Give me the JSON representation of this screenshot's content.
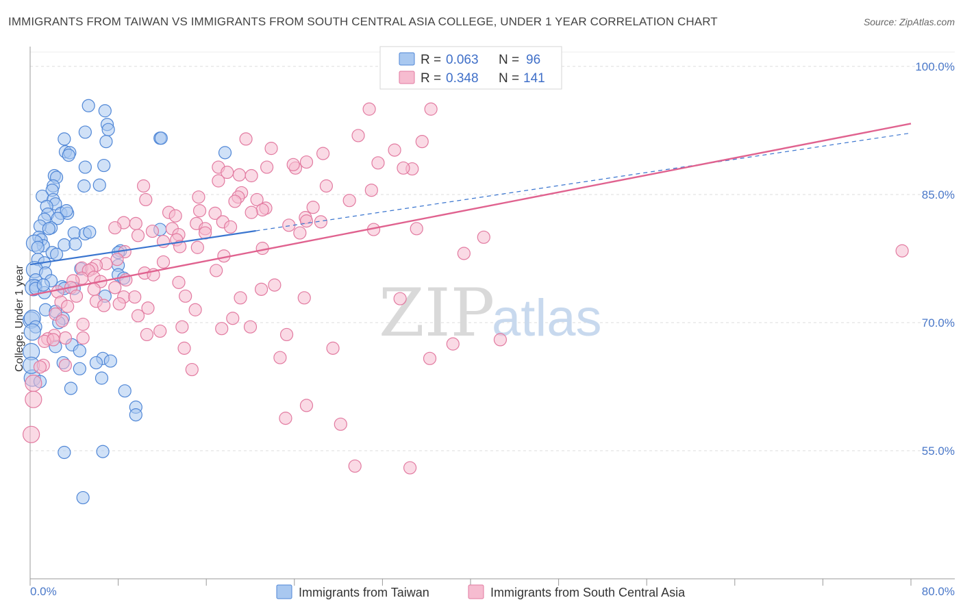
{
  "title": "IMMIGRANTS FROM TAIWAN VS IMMIGRANTS FROM SOUTH CENTRAL ASIA COLLEGE, UNDER 1 YEAR CORRELATION CHART",
  "source": "Source: ZipAtlas.com",
  "watermark": {
    "zip": "ZIP",
    "atlas": "atlas"
  },
  "colors": {
    "taiwan_fill": "#a9c8f0",
    "taiwan_stroke": "#4f86d6",
    "taiwan_line": "#3a75cf",
    "sca_fill": "#f6bcd0",
    "sca_stroke": "#e27aa0",
    "sca_line": "#e0628f",
    "grid": "#dddddd",
    "label": "#4a78c9"
  },
  "legend": {
    "r_label": "R =",
    "n_label": "N =",
    "rows": [
      {
        "series": "Immigrants from Taiwan",
        "r": "0.063",
        "n": "96"
      },
      {
        "series": "Immigrants from South Central Asia",
        "r": "0.348",
        "n": "141"
      }
    ]
  },
  "chart_data": {
    "type": "scatter",
    "title": "IMMIGRANTS FROM TAIWAN VS IMMIGRANTS FROM SOUTH CENTRAL ASIA COLLEGE, UNDER 1 YEAR CORRELATION CHART",
    "xlabel": "",
    "ylabel": "College, Under 1 year",
    "xlim": [
      0,
      80
    ],
    "ylim": [
      40,
      102
    ],
    "x_tick_labels": [
      "0.0%",
      "80.0%"
    ],
    "y_tick_values": [
      55,
      70,
      85,
      100
    ],
    "y_tick_labels": [
      "55.0%",
      "70.0%",
      "85.0%",
      "100.0%"
    ],
    "grid": true,
    "legend_position": "top-center",
    "series": [
      {
        "name": "Immigrants from Taiwan",
        "r": 0.063,
        "n": 96,
        "trend": {
          "solid_x": [
            0,
            20.5
          ],
          "dashed_x": [
            20.5,
            80
          ],
          "y_at_0": 76.8,
          "y_at_80": 92.2
        },
        "points": [
          [
            5.3,
            95.4
          ],
          [
            6.8,
            94.8
          ],
          [
            5.0,
            92.3
          ],
          [
            7.0,
            93.2
          ],
          [
            7.1,
            92.6
          ],
          [
            3.1,
            91.5
          ],
          [
            6.9,
            91.2
          ],
          [
            11.8,
            91.6
          ],
          [
            11.9,
            91.6
          ],
          [
            3.2,
            90.0
          ],
          [
            3.6,
            89.9
          ],
          [
            3.5,
            89.6
          ],
          [
            17.7,
            89.9
          ],
          [
            5.0,
            88.2
          ],
          [
            6.7,
            88.4
          ],
          [
            2.2,
            87.2
          ],
          [
            2.4,
            87.0
          ],
          [
            2.1,
            86.0
          ],
          [
            4.9,
            86.0
          ],
          [
            6.3,
            86.1
          ],
          [
            2.0,
            85.5
          ],
          [
            1.1,
            84.8
          ],
          [
            2.1,
            84.4
          ],
          [
            2.3,
            83.9
          ],
          [
            1.5,
            83.6
          ],
          [
            1.6,
            82.7
          ],
          [
            2.8,
            82.8
          ],
          [
            3.4,
            82.8
          ],
          [
            3.3,
            83.1
          ],
          [
            1.3,
            82.1
          ],
          [
            2.5,
            82.2
          ],
          [
            1.9,
            81.1
          ],
          [
            0.9,
            81.3
          ],
          [
            1.7,
            81.0
          ],
          [
            4.0,
            80.5
          ],
          [
            5.0,
            80.4
          ],
          [
            5.4,
            80.6
          ],
          [
            11.8,
            80.9
          ],
          [
            0.8,
            80.0
          ],
          [
            1.0,
            79.7
          ],
          [
            1.2,
            79.0
          ],
          [
            0.4,
            79.3
          ],
          [
            3.1,
            79.1
          ],
          [
            4.1,
            79.2
          ],
          [
            0.7,
            78.8
          ],
          [
            2.0,
            78.2
          ],
          [
            2.4,
            78.0
          ],
          [
            8.2,
            78.4
          ],
          [
            8.0,
            78.2
          ],
          [
            0.7,
            77.4
          ],
          [
            1.3,
            77.0
          ],
          [
            8.0,
            76.7
          ],
          [
            4.6,
            76.3
          ],
          [
            0.4,
            76.2
          ],
          [
            1.4,
            75.8
          ],
          [
            8.0,
            75.6
          ],
          [
            8.5,
            75.2
          ],
          [
            0.5,
            75.0
          ],
          [
            1.9,
            74.9
          ],
          [
            0.5,
            74.3
          ],
          [
            0.3,
            74.1
          ],
          [
            2.9,
            74.2
          ],
          [
            3.1,
            74.0
          ],
          [
            4.0,
            74.0
          ],
          [
            0.5,
            74.0
          ],
          [
            1.3,
            73.5
          ],
          [
            6.8,
            73.1
          ],
          [
            1.4,
            71.5
          ],
          [
            2.3,
            71.3
          ],
          [
            0.1,
            70.3
          ],
          [
            0.2,
            70.5
          ],
          [
            3.0,
            70.5
          ],
          [
            2.6,
            70.0
          ],
          [
            0.5,
            69.5
          ],
          [
            0.2,
            68.9
          ],
          [
            3.8,
            67.4
          ],
          [
            2.3,
            67.2
          ],
          [
            4.5,
            66.7
          ],
          [
            0.1,
            66.6
          ],
          [
            6.6,
            65.8
          ],
          [
            3.0,
            65.3
          ],
          [
            7.3,
            65.5
          ],
          [
            6.0,
            65.3
          ],
          [
            4.5,
            64.6
          ],
          [
            0.2,
            63.5
          ],
          [
            6.5,
            63.5
          ],
          [
            3.7,
            62.3
          ],
          [
            8.6,
            62.0
          ],
          [
            9.6,
            60.1
          ],
          [
            9.6,
            59.2
          ],
          [
            3.1,
            54.8
          ],
          [
            6.6,
            54.9
          ],
          [
            4.8,
            49.5
          ],
          [
            0.1,
            65.0
          ],
          [
            0.9,
            63.1
          ],
          [
            1.2,
            74.4
          ]
        ]
      },
      {
        "name": "Immigrants from South Central Asia",
        "r": 0.348,
        "n": 141,
        "trend": {
          "solid_x": [
            0,
            80
          ],
          "y_at_0": 73.2,
          "y_at_80": 93.3
        },
        "points": [
          [
            30.8,
            95.0
          ],
          [
            36.4,
            95.0
          ],
          [
            29.8,
            91.9
          ],
          [
            19.6,
            91.5
          ],
          [
            35.6,
            91.2
          ],
          [
            21.9,
            90.4
          ],
          [
            33.1,
            90.2
          ],
          [
            26.6,
            89.8
          ],
          [
            31.6,
            88.7
          ],
          [
            25.1,
            88.8
          ],
          [
            34.7,
            88.0
          ],
          [
            24.1,
            88.1
          ],
          [
            33.9,
            88.1
          ],
          [
            23.9,
            88.5
          ],
          [
            17.1,
            88.2
          ],
          [
            21.5,
            88.2
          ],
          [
            17.9,
            87.6
          ],
          [
            19.0,
            87.3
          ],
          [
            17.1,
            86.6
          ],
          [
            20.1,
            87.2
          ],
          [
            10.3,
            86.0
          ],
          [
            26.9,
            86.0
          ],
          [
            31.0,
            85.5
          ],
          [
            19.2,
            85.2
          ],
          [
            18.9,
            84.7
          ],
          [
            15.3,
            84.7
          ],
          [
            10.5,
            84.4
          ],
          [
            20.6,
            84.4
          ],
          [
            18.6,
            84.2
          ],
          [
            29.0,
            84.3
          ],
          [
            25.7,
            83.5
          ],
          [
            21.4,
            83.4
          ],
          [
            21.1,
            83.2
          ],
          [
            15.4,
            83.1
          ],
          [
            20.1,
            82.9
          ],
          [
            12.6,
            82.9
          ],
          [
            16.8,
            82.8
          ],
          [
            13.2,
            82.5
          ],
          [
            25.0,
            82.3
          ],
          [
            25.1,
            81.9
          ],
          [
            26.4,
            81.8
          ],
          [
            8.5,
            81.7
          ],
          [
            15.1,
            81.6
          ],
          [
            17.5,
            81.8
          ],
          [
            9.6,
            81.6
          ],
          [
            18.2,
            81.2
          ],
          [
            12.9,
            81.0
          ],
          [
            7.7,
            81.1
          ],
          [
            35.1,
            81.0
          ],
          [
            15.9,
            81.0
          ],
          [
            23.5,
            81.4
          ],
          [
            31.2,
            80.9
          ],
          [
            11.1,
            80.7
          ],
          [
            24.5,
            80.5
          ],
          [
            13.5,
            80.3
          ],
          [
            15.9,
            80.5
          ],
          [
            13.3,
            79.7
          ],
          [
            12.1,
            79.5
          ],
          [
            41.2,
            80.0
          ],
          [
            9.8,
            80.2
          ],
          [
            13.6,
            78.9
          ],
          [
            15.2,
            78.8
          ],
          [
            21.1,
            78.7
          ],
          [
            8.6,
            78.3
          ],
          [
            17.6,
            77.8
          ],
          [
            7.9,
            77.4
          ],
          [
            12.1,
            77.1
          ],
          [
            6.9,
            76.9
          ],
          [
            6.0,
            76.7
          ],
          [
            4.7,
            76.4
          ],
          [
            5.6,
            76.3
          ],
          [
            5.3,
            76.1
          ],
          [
            16.9,
            76.1
          ],
          [
            10.4,
            75.8
          ],
          [
            11.2,
            75.6
          ],
          [
            5.8,
            75.3
          ],
          [
            4.7,
            75.2
          ],
          [
            8.7,
            75.0
          ],
          [
            3.9,
            74.9
          ],
          [
            6.4,
            74.8
          ],
          [
            13.5,
            74.7
          ],
          [
            22.2,
            74.4
          ],
          [
            3.7,
            74.1
          ],
          [
            7.7,
            74.1
          ],
          [
            5.8,
            73.9
          ],
          [
            21.0,
            73.9
          ],
          [
            2.5,
            73.6
          ],
          [
            4.2,
            73.1
          ],
          [
            8.5,
            73.0
          ],
          [
            9.5,
            73.0
          ],
          [
            14.1,
            73.1
          ],
          [
            19.1,
            72.9
          ],
          [
            33.6,
            72.8
          ],
          [
            24.9,
            72.9
          ],
          [
            2.8,
            72.4
          ],
          [
            6.0,
            72.5
          ],
          [
            8.1,
            72.2
          ],
          [
            3.4,
            71.9
          ],
          [
            6.7,
            72.0
          ],
          [
            10.7,
            71.7
          ],
          [
            15.0,
            71.5
          ],
          [
            2.3,
            71.0
          ],
          [
            9.8,
            70.8
          ],
          [
            18.4,
            70.5
          ],
          [
            2.9,
            70.2
          ],
          [
            4.8,
            69.8
          ],
          [
            20.0,
            69.5
          ],
          [
            13.8,
            69.5
          ],
          [
            17.4,
            69.3
          ],
          [
            11.8,
            69.0
          ],
          [
            10.6,
            68.6
          ],
          [
            23.3,
            68.6
          ],
          [
            2.2,
            68.5
          ],
          [
            1.6,
            68.1
          ],
          [
            3.2,
            68.2
          ],
          [
            4.8,
            68.2
          ],
          [
            1.3,
            67.8
          ],
          [
            2.1,
            68.0
          ],
          [
            38.4,
            67.5
          ],
          [
            27.5,
            67.0
          ],
          [
            14.0,
            67.0
          ],
          [
            22.7,
            65.9
          ],
          [
            36.3,
            65.8
          ],
          [
            3.2,
            65.0
          ],
          [
            1.2,
            65.0
          ],
          [
            0.9,
            64.8
          ],
          [
            14.7,
            64.5
          ],
          [
            0.3,
            62.9
          ],
          [
            25.1,
            60.3
          ],
          [
            0.3,
            61.0
          ],
          [
            23.2,
            58.8
          ],
          [
            28.2,
            58.1
          ],
          [
            0.1,
            56.9
          ],
          [
            29.5,
            53.2
          ],
          [
            34.5,
            53.0
          ],
          [
            39.4,
            78.1
          ],
          [
            42.7,
            68.0
          ],
          [
            79.2,
            78.4
          ]
        ]
      }
    ]
  },
  "axis": {
    "y_title": "College, Under 1 year",
    "x_left": "0.0%",
    "x_right": "80.0%"
  }
}
